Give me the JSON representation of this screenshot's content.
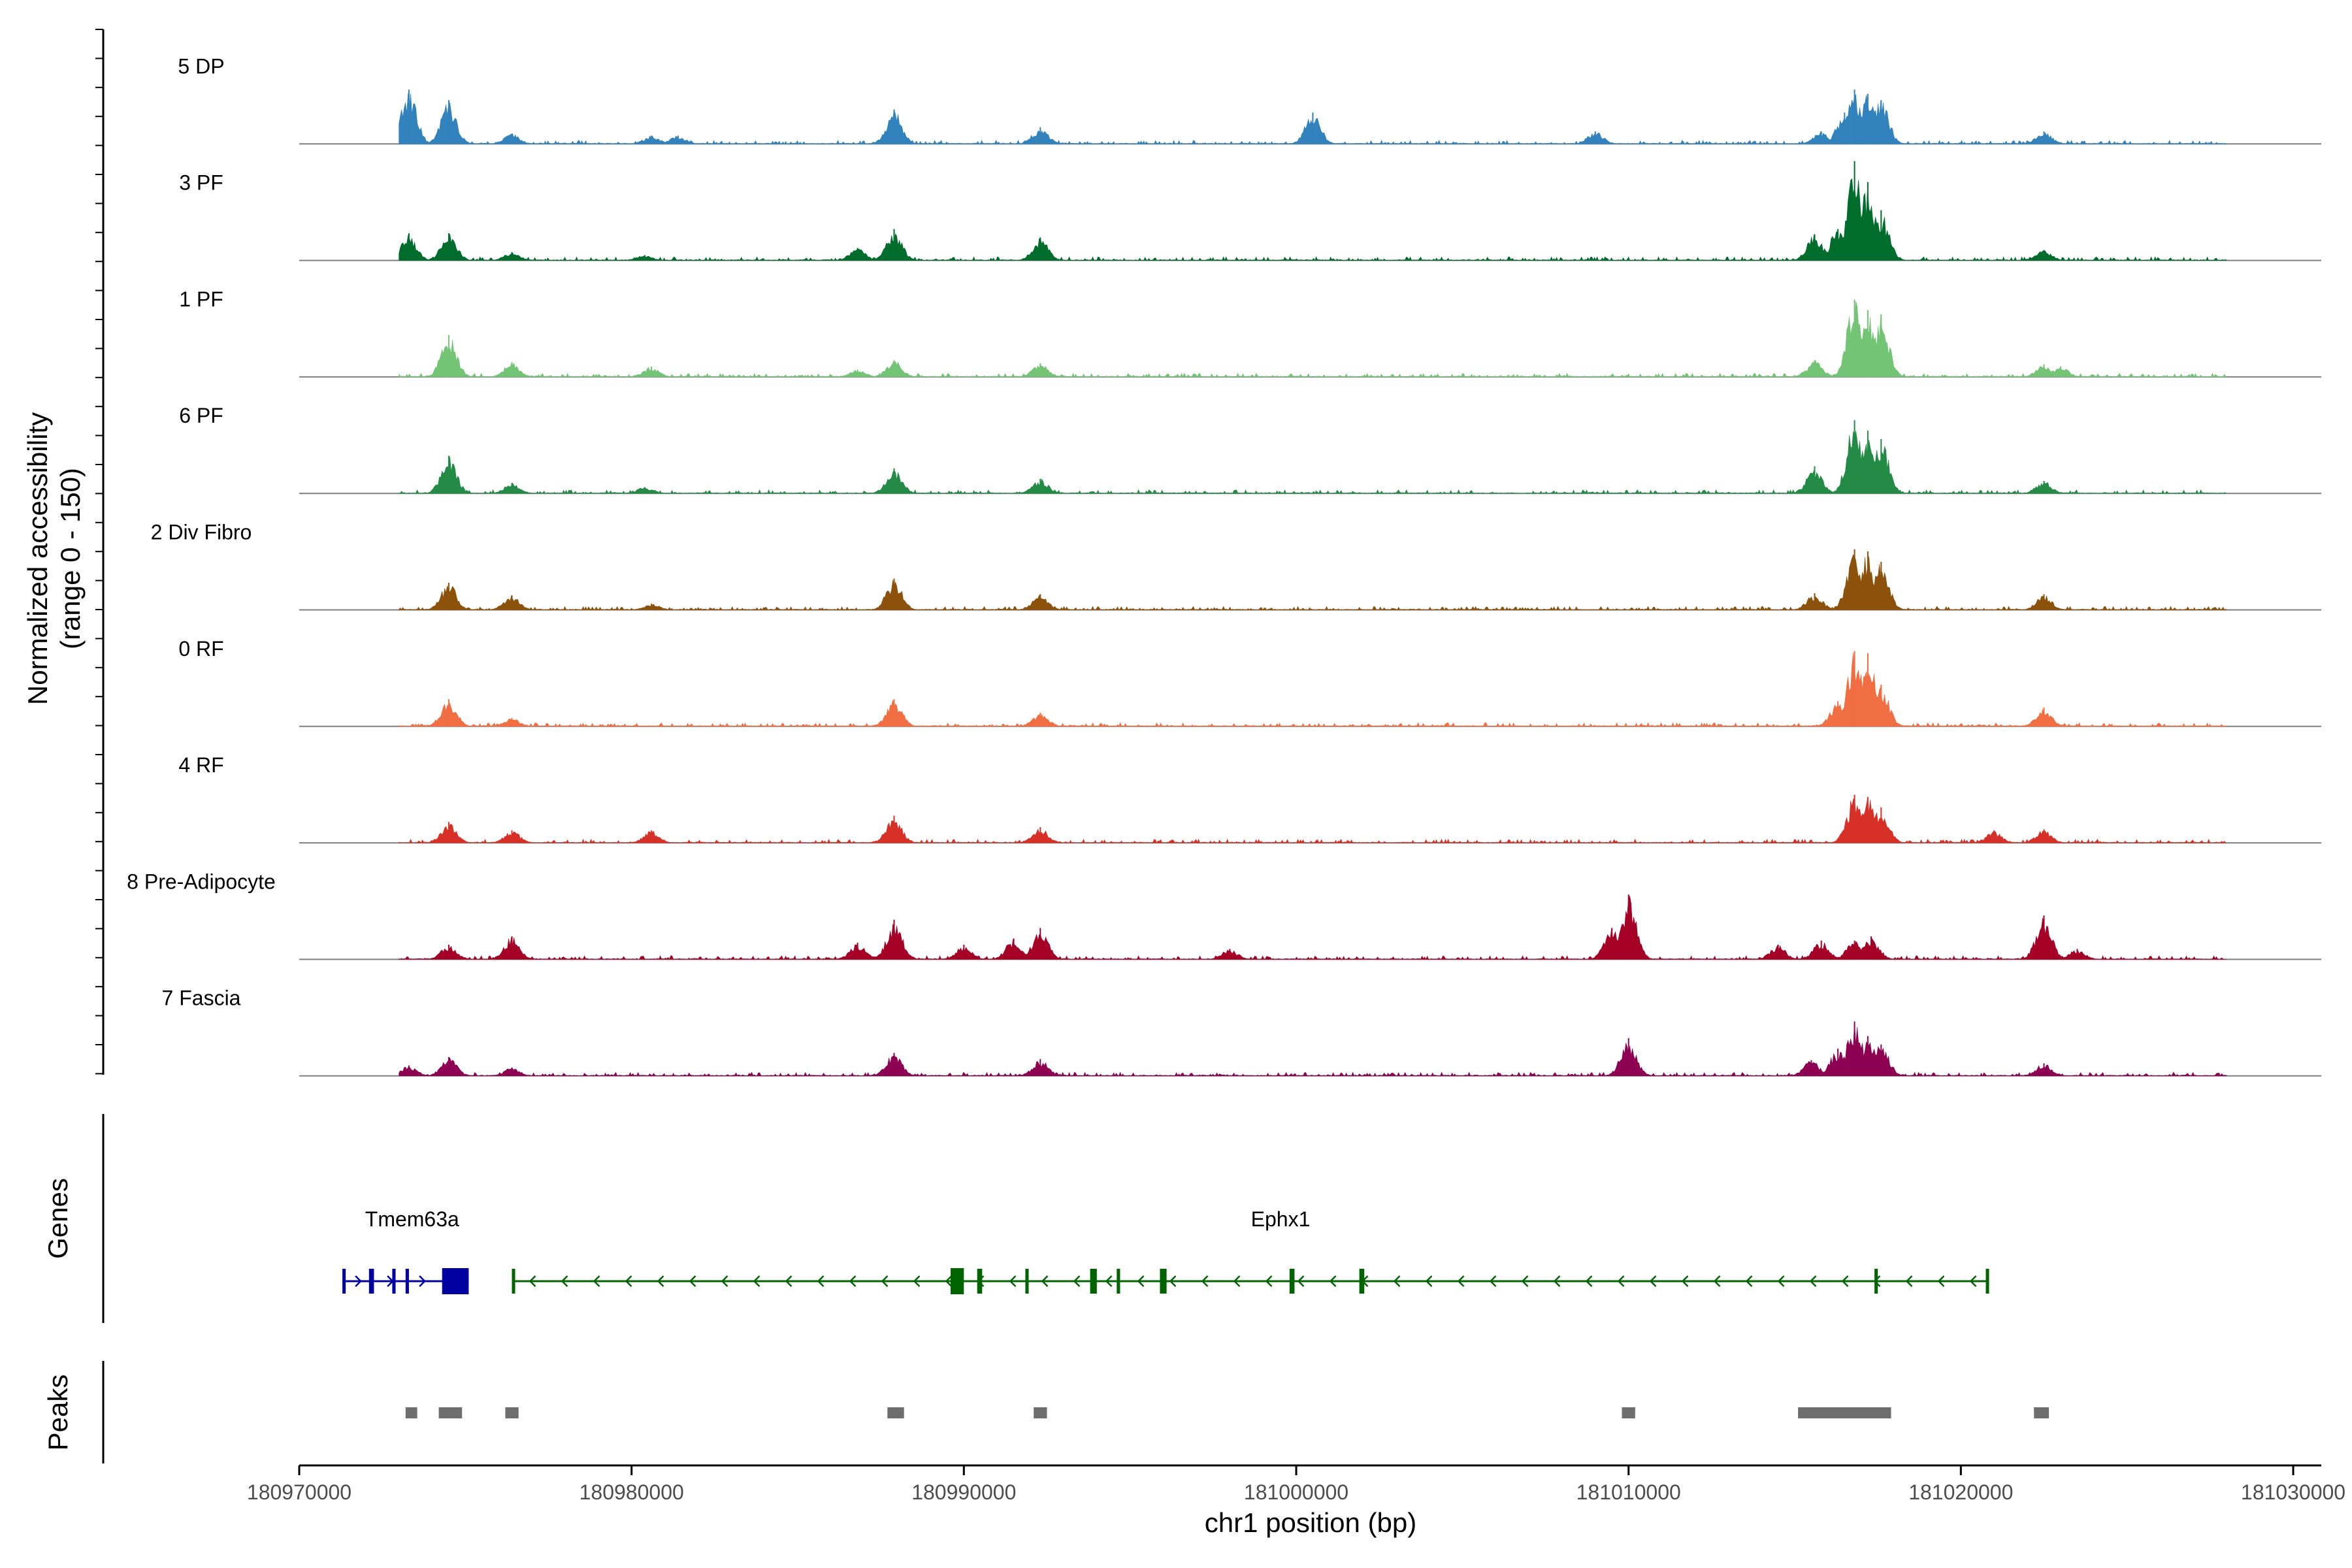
{
  "chart_data": {
    "type": "area",
    "title": "",
    "chromosome": "chr1",
    "xlabel": "chr1 position (bp)",
    "ylabel_line1": "Normalized accessibility",
    "ylabel_line2": "(range 0 - 150)",
    "y_range": [
      0,
      150
    ],
    "xlim": [
      180970000,
      181030000
    ],
    "x_ticks": [
      180970000,
      180980000,
      180990000,
      181000000,
      181010000,
      181020000,
      181030000
    ],
    "x_tick_labels": [
      "180970000",
      "180980000",
      "180990000",
      "181000000",
      "181010000",
      "181020000",
      "181030000"
    ],
    "coverage_range_bp": [
      180973000,
      181028000
    ],
    "tracks": [
      {
        "name": "5 DP",
        "color": "#3182bd",
        "peaks": [
          [
            180973300,
            0.52
          ],
          [
            180974500,
            0.42
          ],
          [
            180976400,
            0.1
          ],
          [
            180980600,
            0.08
          ],
          [
            180981400,
            0.08
          ],
          [
            180987900,
            0.33
          ],
          [
            180992300,
            0.16
          ],
          [
            181000500,
            0.3
          ],
          [
            181009000,
            0.12
          ],
          [
            181015800,
            0.12
          ],
          [
            181016500,
            0.3
          ],
          [
            181016800,
            0.52
          ],
          [
            181017200,
            0.48
          ],
          [
            181017600,
            0.42
          ],
          [
            181022500,
            0.12
          ]
        ]
      },
      {
        "name": "3 PF",
        "color": "#006d2c",
        "peaks": [
          [
            180973300,
            0.26
          ],
          [
            180974500,
            0.26
          ],
          [
            180976400,
            0.08
          ],
          [
            180980400,
            0.05
          ],
          [
            180986800,
            0.12
          ],
          [
            180987900,
            0.3
          ],
          [
            180992300,
            0.22
          ],
          [
            181015600,
            0.25
          ],
          [
            181016300,
            0.3
          ],
          [
            181016800,
            0.95
          ],
          [
            181017200,
            0.75
          ],
          [
            181017600,
            0.48
          ],
          [
            181022500,
            0.1
          ]
        ]
      },
      {
        "name": "1 PF",
        "color": "#74c476",
        "peaks": [
          [
            180974500,
            0.4
          ],
          [
            180976400,
            0.14
          ],
          [
            180980600,
            0.1
          ],
          [
            180986800,
            0.07
          ],
          [
            180987900,
            0.16
          ],
          [
            180992300,
            0.13
          ],
          [
            181015600,
            0.16
          ],
          [
            181016800,
            0.74
          ],
          [
            181017200,
            0.64
          ],
          [
            181017600,
            0.6
          ],
          [
            181022500,
            0.12
          ],
          [
            181023000,
            0.1
          ]
        ]
      },
      {
        "name": "6 PF",
        "color": "#238b45",
        "peaks": [
          [
            180974500,
            0.36
          ],
          [
            180976400,
            0.1
          ],
          [
            180980400,
            0.06
          ],
          [
            180987900,
            0.24
          ],
          [
            180992300,
            0.14
          ],
          [
            181015600,
            0.26
          ],
          [
            181016800,
            0.7
          ],
          [
            181017200,
            0.6
          ],
          [
            181017600,
            0.52
          ],
          [
            181022500,
            0.12
          ]
        ]
      },
      {
        "name": "2 Div Fibro",
        "color": "#8c510a",
        "peaks": [
          [
            180974500,
            0.26
          ],
          [
            180976400,
            0.14
          ],
          [
            180980600,
            0.06
          ],
          [
            180987900,
            0.3
          ],
          [
            180992300,
            0.15
          ],
          [
            181015600,
            0.16
          ],
          [
            181016800,
            0.58
          ],
          [
            181017200,
            0.56
          ],
          [
            181017600,
            0.46
          ],
          [
            181022500,
            0.15
          ]
        ]
      },
      {
        "name": "0 RF",
        "color": "#f16d42",
        "peaks": [
          [
            180974500,
            0.26
          ],
          [
            180976400,
            0.08
          ],
          [
            180987900,
            0.26
          ],
          [
            180992300,
            0.13
          ],
          [
            181016300,
            0.24
          ],
          [
            181016800,
            0.72
          ],
          [
            181017200,
            0.7
          ],
          [
            181017600,
            0.4
          ],
          [
            181022500,
            0.18
          ]
        ]
      },
      {
        "name": "4 RF",
        "color": "#d73027",
        "peaks": [
          [
            180974500,
            0.2
          ],
          [
            180976400,
            0.12
          ],
          [
            180980600,
            0.12
          ],
          [
            180987900,
            0.26
          ],
          [
            180992300,
            0.15
          ],
          [
            181016800,
            0.46
          ],
          [
            181017200,
            0.44
          ],
          [
            181017600,
            0.34
          ],
          [
            181021000,
            0.12
          ],
          [
            181022500,
            0.13
          ]
        ]
      },
      {
        "name": "8 Pre-Adipocyte",
        "color": "#a50026",
        "peaks": [
          [
            180974500,
            0.14
          ],
          [
            180976400,
            0.22
          ],
          [
            180986800,
            0.16
          ],
          [
            180987900,
            0.38
          ],
          [
            180990000,
            0.14
          ],
          [
            180991500,
            0.2
          ],
          [
            180992300,
            0.3
          ],
          [
            180998000,
            0.1
          ],
          [
            181009500,
            0.3
          ],
          [
            181010000,
            0.62
          ],
          [
            181014500,
            0.14
          ],
          [
            181015800,
            0.18
          ],
          [
            181016800,
            0.18
          ],
          [
            181017300,
            0.22
          ],
          [
            181022500,
            0.42
          ],
          [
            181023500,
            0.1
          ]
        ]
      },
      {
        "name": "7 Fascia",
        "color": "#8e0152",
        "peaks": [
          [
            180973300,
            0.1
          ],
          [
            180974500,
            0.18
          ],
          [
            180976400,
            0.08
          ],
          [
            180987900,
            0.22
          ],
          [
            180992300,
            0.16
          ],
          [
            181010000,
            0.36
          ],
          [
            181015500,
            0.15
          ],
          [
            181016300,
            0.26
          ],
          [
            181016800,
            0.52
          ],
          [
            181017200,
            0.38
          ],
          [
            181017600,
            0.3
          ],
          [
            181022500,
            0.12
          ]
        ]
      }
    ],
    "genes": [
      {
        "name": "Tmem63a",
        "color": "#0000a0",
        "strand": "+",
        "start": 180971300,
        "end": 180975100,
        "exons": [
          [
            180971300,
            180971350
          ],
          [
            180972100,
            180972250
          ],
          [
            180972800,
            180972900
          ],
          [
            180973200,
            180973300
          ],
          [
            180974300,
            180975100
          ]
        ]
      },
      {
        "name": "Ephx1",
        "color": "#006400",
        "strand": "-",
        "start": 180976400,
        "end": 181020800,
        "exons": [
          [
            180976400,
            180976450
          ],
          [
            180989600,
            180990000
          ],
          [
            180990400,
            180990550
          ],
          [
            180991850,
            180991950
          ],
          [
            180993800,
            180994000
          ],
          [
            180994600,
            180994700
          ],
          [
            180995900,
            180996100
          ],
          [
            180999800,
            180999950
          ],
          [
            181001900,
            181002050
          ],
          [
            181017400,
            181017500
          ],
          [
            181020750,
            181020800
          ]
        ]
      }
    ],
    "peak_regions": [
      [
        180973200,
        180973550
      ],
      [
        180974200,
        180974900
      ],
      [
        180976200,
        180976600
      ],
      [
        180987700,
        180988200
      ],
      [
        180992100,
        180992500
      ],
      [
        181009800,
        181010200
      ],
      [
        181015100,
        181017900
      ],
      [
        181022200,
        181022650
      ]
    ],
    "gene_panel_label": "Genes",
    "peak_panel_label": "Peaks"
  }
}
